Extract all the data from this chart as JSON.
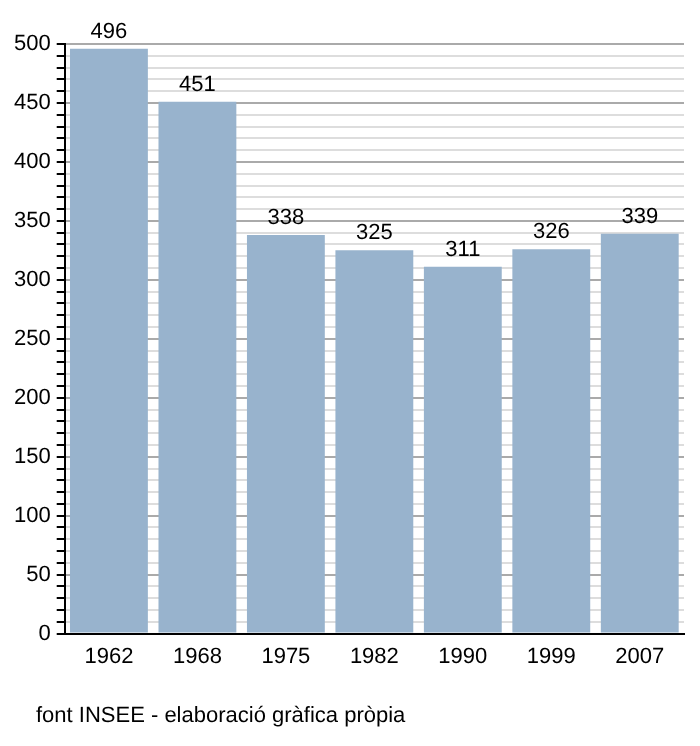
{
  "chart_data": {
    "type": "bar",
    "categories": [
      "1962",
      "1968",
      "1975",
      "1982",
      "1990",
      "1999",
      "2007"
    ],
    "values": [
      496,
      451,
      338,
      325,
      311,
      326,
      339
    ],
    "color": "#98b3cd",
    "data_labels": true,
    "grid": "y",
    "ylim": [
      0,
      500
    ],
    "yticks": [
      0,
      {
        "value": 10,
        "label": null
      },
      {
        "value": 20,
        "label": null
      },
      {
        "value": 30,
        "label": null
      },
      {
        "value": 40,
        "label": null
      },
      50,
      {
        "value": 60,
        "label": null
      },
      {
        "value": 70,
        "label": null
      },
      {
        "value": 80,
        "label": null
      },
      {
        "value": 90,
        "label": null
      },
      100,
      {
        "value": 110,
        "label": null
      },
      {
        "value": 120,
        "label": null
      },
      {
        "value": 130,
        "label": null
      },
      {
        "value": 140,
        "label": null
      },
      150,
      {
        "value": 160,
        "label": null
      },
      {
        "value": 170,
        "label": null
      },
      {
        "value": 180,
        "label": null
      },
      {
        "value": 190,
        "label": null
      },
      200,
      {
        "value": 210,
        "label": null
      },
      {
        "value": 220,
        "label": null
      },
      {
        "value": 230,
        "label": null
      },
      {
        "value": 240,
        "label": null
      },
      250,
      {
        "value": 260,
        "label": null
      },
      {
        "value": 270,
        "label": null
      },
      {
        "value": 280,
        "label": null
      },
      {
        "value": 290,
        "label": null
      },
      300,
      {
        "value": 310,
        "label": null
      },
      {
        "value": 320,
        "label": null
      },
      {
        "value": 330,
        "label": null
      },
      {
        "value": 340,
        "label": null
      },
      350,
      {
        "value": 360,
        "label": null
      },
      {
        "value": 370,
        "label": null
      },
      {
        "value": 380,
        "label": null
      },
      {
        "value": 390,
        "label": null
      },
      400,
      {
        "value": 410,
        "label": null
      },
      {
        "value": 420,
        "label": null
      },
      {
        "value": 430,
        "label": null
      },
      {
        "value": 440,
        "label": null
      },
      450,
      {
        "value": 460,
        "label": null
      },
      {
        "value": 470,
        "label": null
      },
      {
        "value": 480,
        "label": null
      },
      {
        "value": 490,
        "label": null
      },
      500
    ],
    "annotations": [
      "font INSEE - elaboració gràfica pròpia"
    ]
  }
}
